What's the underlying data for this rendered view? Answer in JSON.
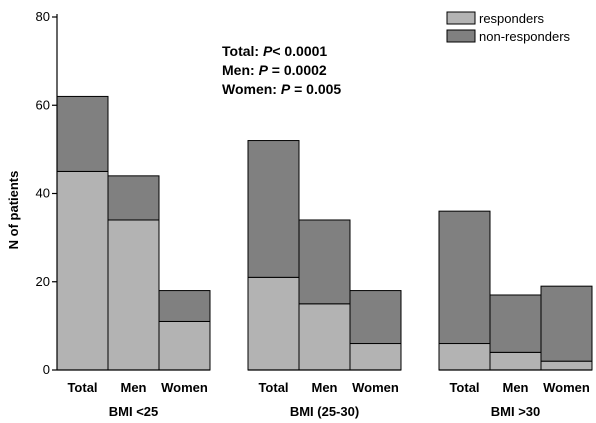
{
  "chart_data": {
    "type": "bar",
    "stacked": true,
    "ylabel": "N of patients",
    "xlabel": "",
    "ylim": [
      0,
      80
    ],
    "yticks": [
      0,
      20,
      40,
      60,
      80
    ],
    "grid": false,
    "legend_position": "top-right",
    "groups": [
      {
        "label": "BMI <25",
        "categories": [
          "Total",
          "Men",
          "Women"
        ]
      },
      {
        "label": "BMI (25-30)",
        "categories": [
          "Total",
          "Men",
          "Women"
        ]
      },
      {
        "label": "BMI >30",
        "categories": [
          "Total",
          "Men",
          "Women"
        ]
      }
    ],
    "series": [
      {
        "name": "responders",
        "color": "#b3b3b3",
        "values": [
          45,
          34,
          11,
          21,
          15,
          6,
          6,
          4,
          2
        ]
      },
      {
        "name": "non-responders",
        "color": "#808080",
        "values": [
          17,
          10,
          7,
          31,
          19,
          12,
          30,
          13,
          17
        ]
      }
    ],
    "annotations": [
      {
        "prefix": "Total: ",
        "italic": "P",
        "suffix": "< 0.0001"
      },
      {
        "prefix": "Men: ",
        "italic": "P",
        "suffix": " = 0.0002"
      },
      {
        "prefix": "Women: ",
        "italic": "P",
        "suffix": " = 0.005"
      }
    ]
  }
}
